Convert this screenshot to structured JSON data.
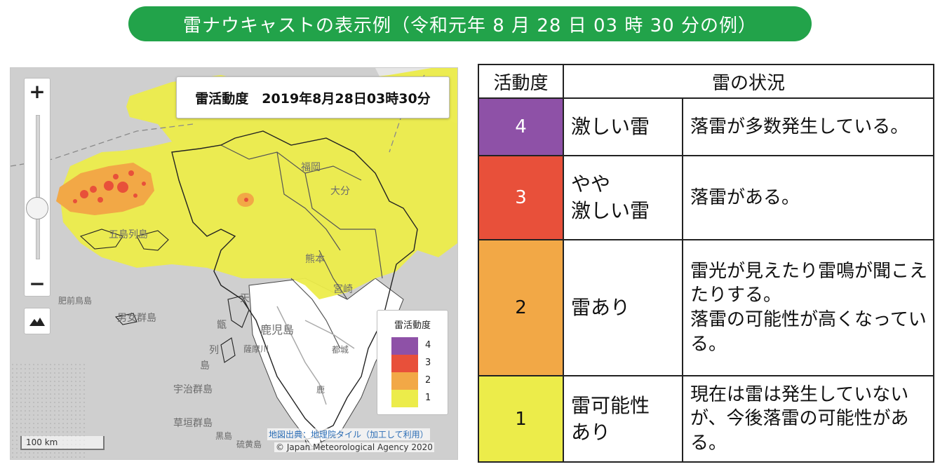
{
  "header": {
    "banner": "雷ナウキャストの表示例（令和元年 8 月 28 日 03 時 30 分の例）"
  },
  "map": {
    "zoom_in": "+",
    "zoom_out": "−",
    "zoom_level": 0.32,
    "timestamp": "雷活動度　2019年8月28日03時30分",
    "legend": {
      "title": "雷活動度",
      "items": [
        {
          "label": "4",
          "color": "#8e51a7"
        },
        {
          "label": "3",
          "color": "#e8503a"
        },
        {
          "label": "2",
          "color": "#f2a846"
        },
        {
          "label": "1",
          "color": "#ecec4a"
        }
      ]
    },
    "attribution_link": "地図出典：地理院タイル（加工して利用）",
    "attribution_copyright": "© Japan Meteorological Agency 2020",
    "scale": "100 km",
    "place_labels": {
      "fukuoka": "福岡",
      "oita": "大分",
      "kumamoto": "熊本",
      "miyazaki": "宮崎",
      "kagoshima": "鹿児島",
      "goto": "五島列島",
      "hizen": "肥前鳥島",
      "danjo": "男女群島",
      "uji": "宇治群島",
      "kusagaki": "草垣群島",
      "amakusa": "天",
      "koshiki": "甑",
      "retto": "列",
      "shima": "島",
      "satsuma": "薩摩川",
      "miyakonojo": "都城",
      "kanoya": "鹿",
      "kuroshima": "黒島",
      "iojima": "硫黄島"
    }
  },
  "table": {
    "headers": {
      "level": "活動度",
      "status": "雷の状況"
    },
    "rows": [
      {
        "level": "4",
        "name": "激しい雷",
        "desc": "落雷が多数発生している。",
        "color": "#8e51a7",
        "text_color": "#ffffff"
      },
      {
        "level": "3",
        "name": "やや\n激しい雷",
        "desc": "落雷がある。",
        "color": "#e8503a",
        "text_color": "#ffffff"
      },
      {
        "level": "2",
        "name": "雷あり",
        "desc": "雷光が見えたり雷鳴が聞こえたりする。\n落雷の可能性が高くなっている。",
        "color": "#f2a846",
        "text_color": "#111111"
      },
      {
        "level": "1",
        "name": "雷可能性\nあり",
        "desc": "現在は雷は発生していないが、今後落雷の可能性がある。",
        "color": "#ecec4a",
        "text_color": "#111111"
      }
    ]
  }
}
